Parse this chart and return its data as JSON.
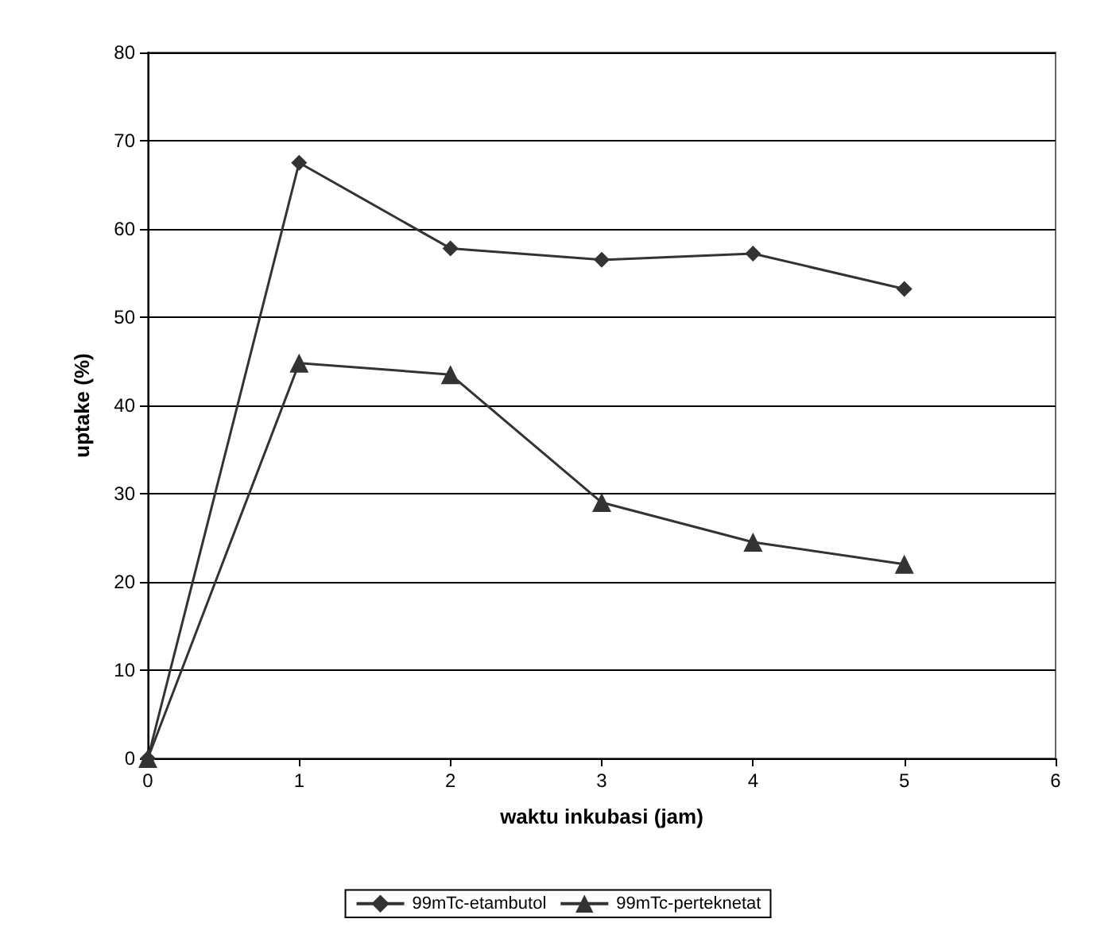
{
  "chart_data": {
    "type": "line",
    "xlabel": "waktu inkubasi (jam)",
    "ylabel": "uptake (%)",
    "x": [
      0,
      1,
      2,
      3,
      4,
      5
    ],
    "series": [
      {
        "name": "99mTc-etambutol",
        "color": "#333333",
        "marker": "diamond",
        "values": [
          0,
          67.5,
          57.8,
          56.5,
          57.2,
          53.2
        ]
      },
      {
        "name": "99mTc-perteknetat",
        "color": "#333333",
        "marker": "triangle",
        "values": [
          0,
          44.8,
          43.5,
          29,
          24.5,
          22
        ]
      }
    ],
    "xlim": [
      0,
      6
    ],
    "xticks": [
      0,
      1,
      2,
      3,
      4,
      5,
      6
    ],
    "ylim": [
      0,
      80
    ],
    "yticks": [
      0,
      10,
      20,
      30,
      40,
      50,
      60,
      70,
      80
    ],
    "grid": "y",
    "legend": "bottom",
    "line_style": "solid"
  }
}
